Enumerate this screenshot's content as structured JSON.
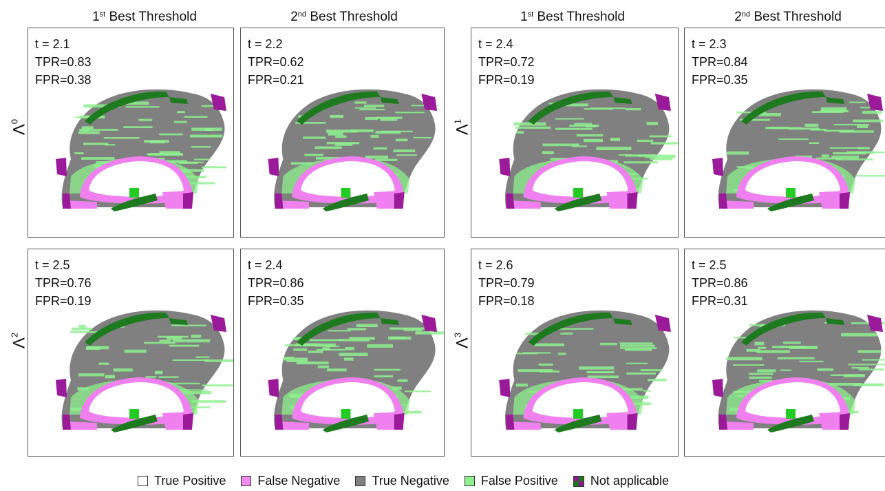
{
  "column_headers": [
    {
      "rank": "1",
      "suffix": "st",
      "text": " Best Threshold"
    },
    {
      "rank": "2",
      "suffix": "nd",
      "text": " Best Threshold"
    },
    {
      "rank": "1",
      "suffix": "st",
      "text": " Best Threshold"
    },
    {
      "rank": "2",
      "suffix": "nd",
      "text": " Best Threshold"
    }
  ],
  "row_labels": [
    {
      "symbol": "Λ",
      "exp": "0"
    },
    {
      "symbol": "Λ",
      "exp": "1"
    },
    {
      "symbol": "Λ",
      "exp": "2"
    },
    {
      "symbol": "Λ",
      "exp": "3"
    }
  ],
  "panels": [
    {
      "t": "t = 2.1",
      "tpr": "TPR=0.83",
      "fpr": "FPR=0.38",
      "fp_level": 0.55
    },
    {
      "t": "t = 2.2",
      "tpr": "TPR=0.62",
      "fpr": "FPR=0.21",
      "fp_level": 0.35
    },
    {
      "t": "t = 2.4",
      "tpr": "TPR=0.72",
      "fpr": "FPR=0.19",
      "fp_level": 0.3
    },
    {
      "t": "t = 2.3",
      "tpr": "TPR=0.84",
      "fpr": "FPR=0.35",
      "fp_level": 0.5
    },
    {
      "t": "t = 2.5",
      "tpr": "TPR=0.76",
      "fpr": "FPR=0.19",
      "fp_level": 0.3
    },
    {
      "t": "t = 2.4",
      "tpr": "TPR=0.86",
      "fpr": "FPR=0.35",
      "fp_level": 0.5
    },
    {
      "t": "t = 2.6",
      "tpr": "TPR=0.79",
      "fpr": "FPR=0.18",
      "fp_level": 0.28
    },
    {
      "t": "t = 2.5",
      "tpr": "TPR=0.86",
      "fpr": "FPR=0.31",
      "fp_level": 0.45
    }
  ],
  "legend": [
    {
      "label": "True Positive",
      "color": "#ffffff"
    },
    {
      "label": "False Negative",
      "color": "#f08cf0"
    },
    {
      "label": "True Negative",
      "color": "#808080"
    },
    {
      "label": "False Positive",
      "color": "#90f090"
    },
    {
      "label": "Not applicable",
      "colors": [
        "#8b1a8b",
        "#1a7a1a",
        "#1a7a1a",
        "#8b1a8b"
      ]
    }
  ],
  "colors": {
    "true_positive": "#ffffff",
    "false_negative": "#f080f0",
    "true_negative": "#808080",
    "false_positive": "#8ef08e",
    "na_purple": "#9a1a9a",
    "na_green": "#1e7a1e"
  }
}
